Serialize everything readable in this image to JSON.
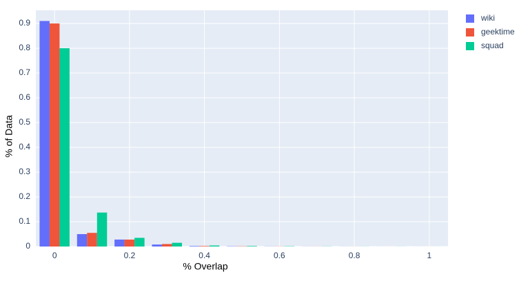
{
  "chart_data": {
    "type": "bar",
    "xlabel": "% Overlap",
    "ylabel": "% of Data",
    "x": [
      0,
      0.1,
      0.2,
      0.3,
      0.4,
      0.5,
      0.6,
      0.7,
      0.8,
      0.9,
      1.0
    ],
    "series": [
      {
        "name": "wiki",
        "color": "#636efa",
        "values": [
          0.91,
          0.05,
          0.028,
          0.008,
          0.002,
          0.001,
          0.0005,
          0.0003,
          0.0002,
          0.0001,
          0.0001
        ]
      },
      {
        "name": "geektime",
        "color": "#ef553b",
        "values": [
          0.9,
          0.055,
          0.028,
          0.01,
          0.002,
          0.001,
          0.0005,
          0.0003,
          0.0002,
          0.0001,
          0.0001
        ]
      },
      {
        "name": "squad",
        "color": "#00cc96",
        "values": [
          0.8,
          0.137,
          0.035,
          0.015,
          0.004,
          0.002,
          0.001,
          0.0005,
          0.0003,
          0.0002,
          0.0001
        ]
      }
    ],
    "xlim": [
      -0.05,
      1.05
    ],
    "xticks": [
      0,
      0.2,
      0.4,
      0.6,
      0.8,
      1
    ],
    "ylim": [
      0,
      0.953
    ],
    "yticks": [
      0,
      0.1,
      0.2,
      0.3,
      0.4,
      0.5,
      0.6,
      0.7,
      0.8,
      0.9
    ],
    "grid": true,
    "legend": "right"
  }
}
